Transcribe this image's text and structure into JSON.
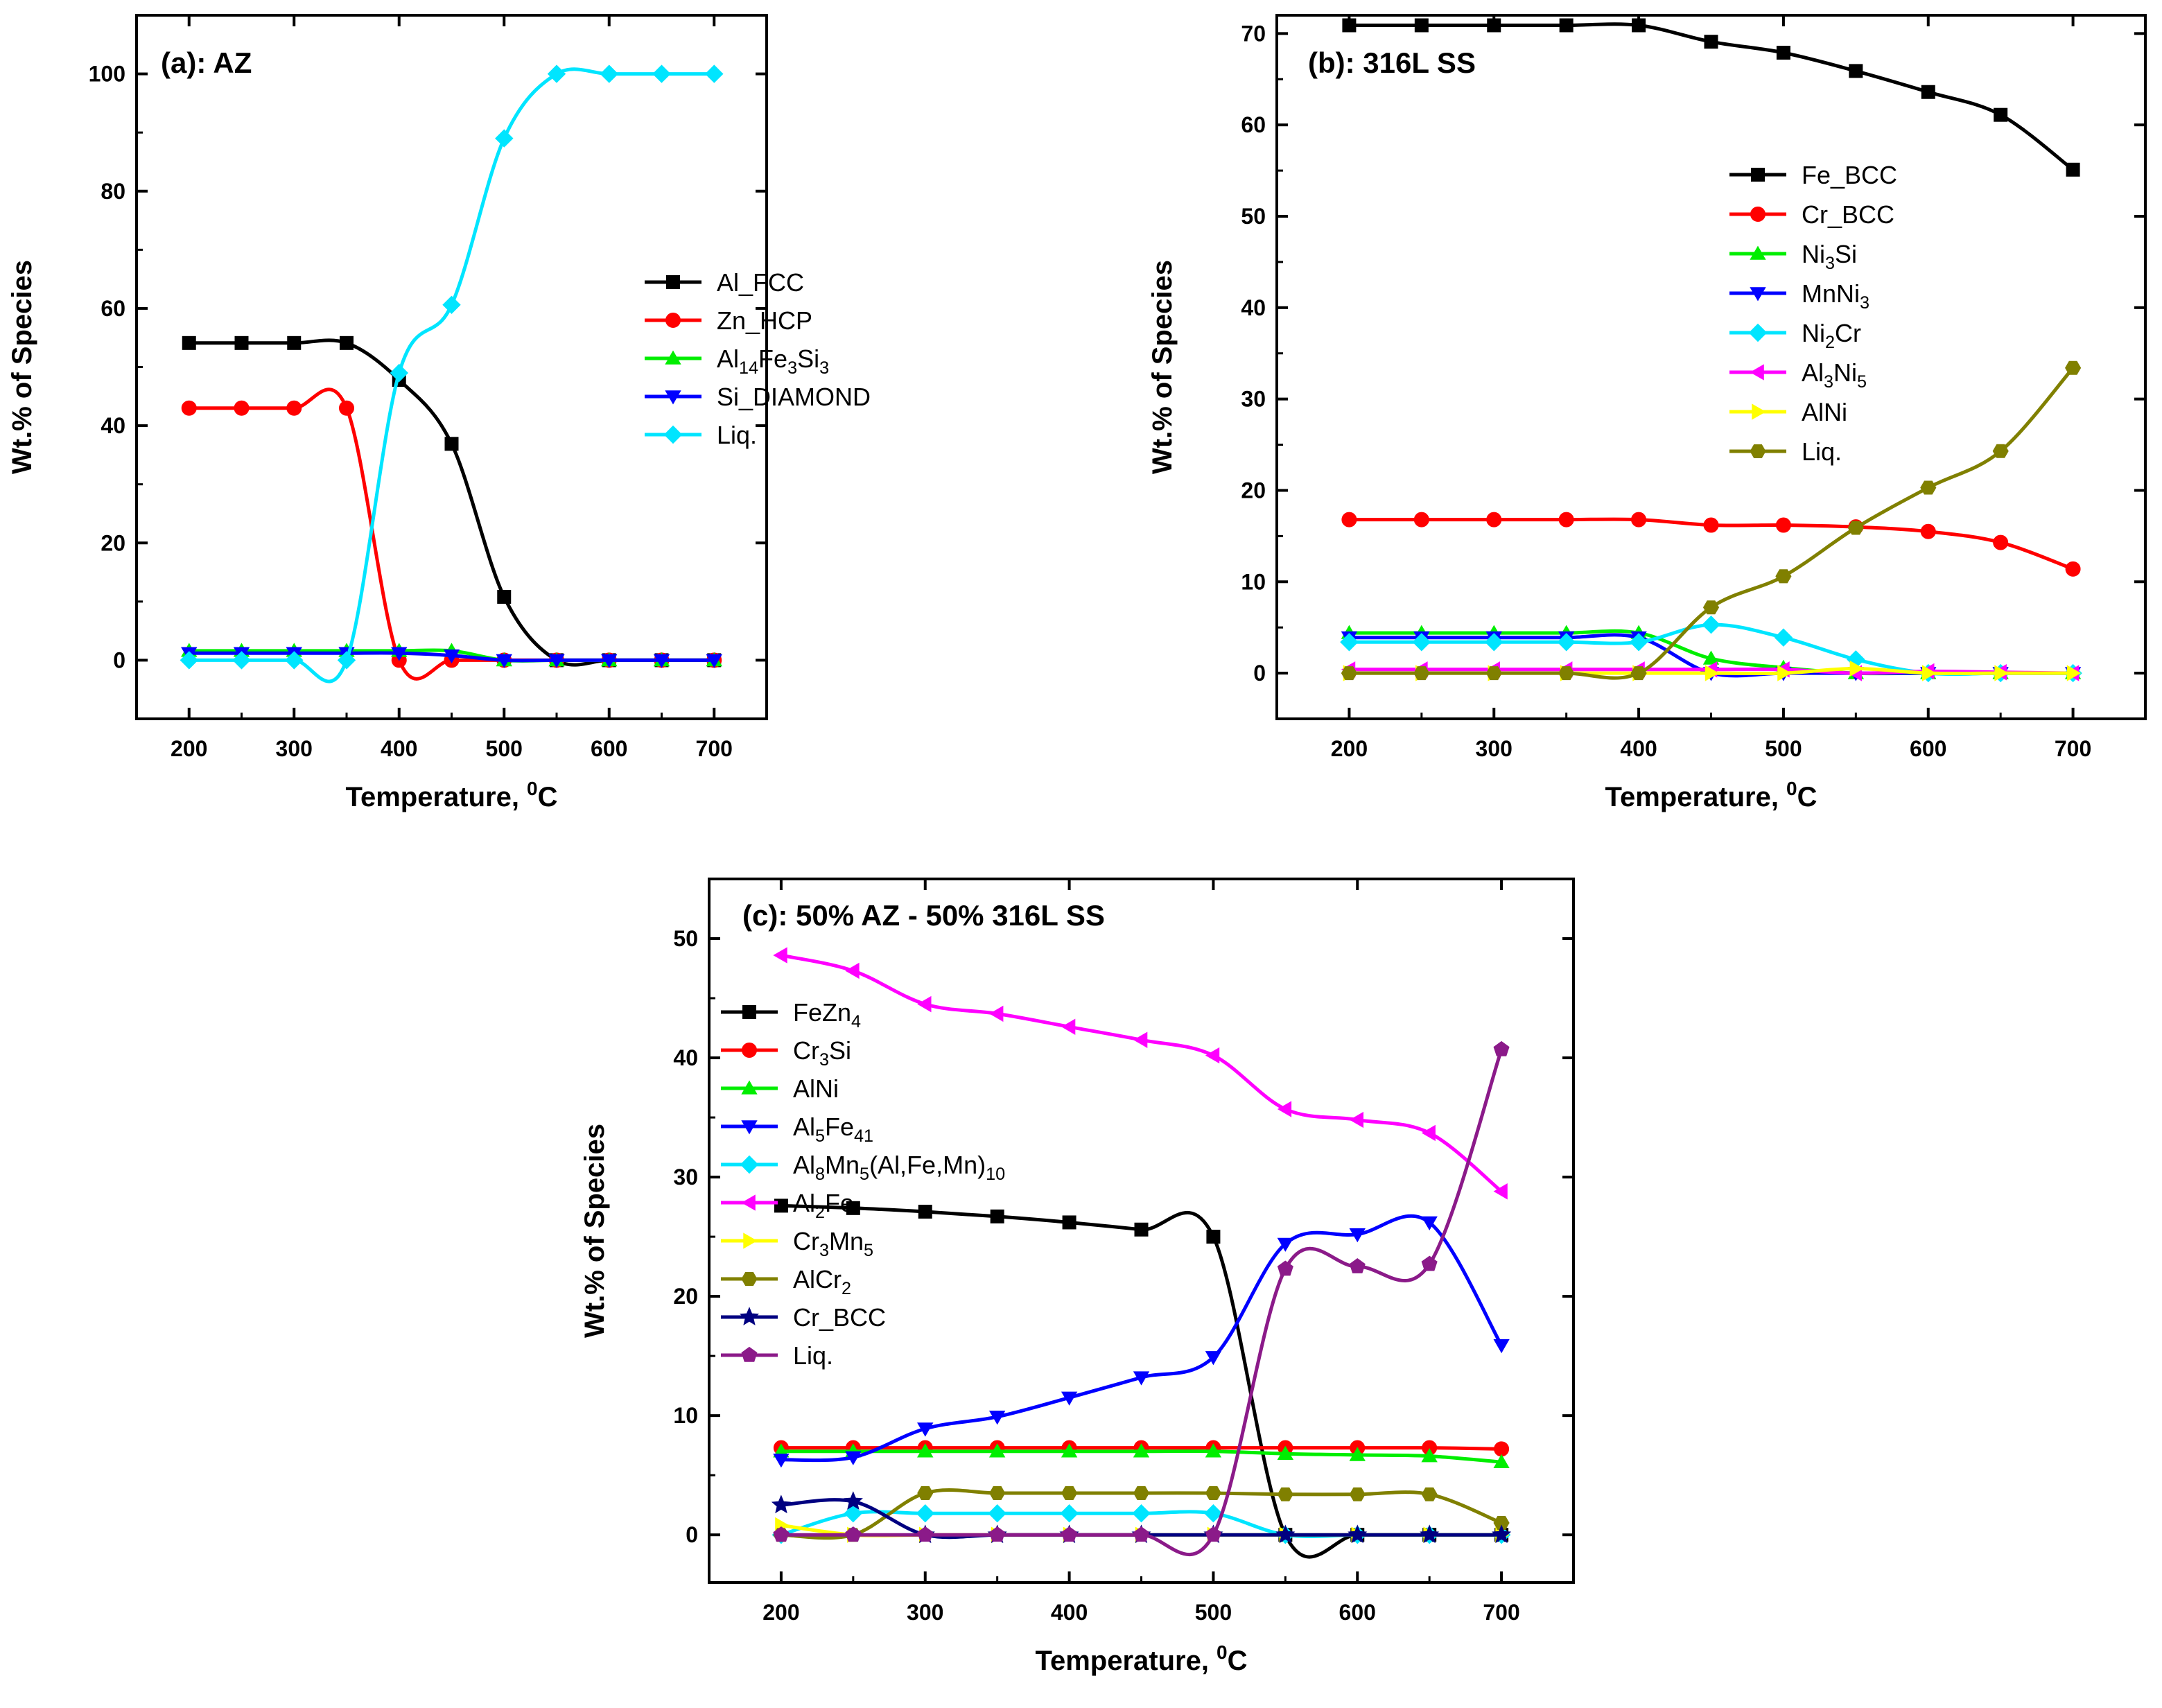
{
  "figure": {
    "name": "thermodynamic-phase-fraction-figure"
  },
  "chart_data": [
    {
      "id": "a",
      "type": "line",
      "title": "(a): AZ",
      "xlabel": {
        "main": "Temperature, ",
        "sup": "0",
        "tail": "C"
      },
      "ylabel": "Wt.% of Species",
      "xlim": [
        150,
        750
      ],
      "ylim": [
        -10,
        110
      ],
      "xticks": [
        200,
        300,
        400,
        500,
        600,
        700
      ],
      "yticks": [
        0,
        20,
        40,
        60,
        80,
        100
      ],
      "legend_position": "center-right",
      "x": [
        200,
        250,
        300,
        350,
        400,
        450,
        500,
        550,
        600,
        650,
        700
      ],
      "series": [
        {
          "name": "Al_FCC",
          "label": [
            [
              "Al_FCC",
              ""
            ]
          ],
          "color": "#000000",
          "marker": "square",
          "values": [
            54.1,
            54.1,
            54.1,
            54.1,
            47.8,
            36.9,
            10.8,
            0.0,
            0.0,
            0.0,
            0.0
          ]
        },
        {
          "name": "Zn_HCP",
          "label": [
            [
              "Zn_HCP",
              ""
            ]
          ],
          "color": "#ff0000",
          "marker": "circle",
          "values": [
            43.0,
            43.0,
            43.0,
            43.0,
            0.0,
            0.0,
            0.0,
            0.0,
            0.0,
            0.0,
            0.0
          ]
        },
        {
          "name": "Al14Fe3Si3",
          "label": [
            [
              "Al",
              ""
            ],
            [
              "14",
              "sub"
            ],
            [
              "Fe",
              ""
            ],
            [
              "3",
              "sub"
            ],
            [
              "Si",
              ""
            ],
            [
              "3",
              "sub"
            ]
          ],
          "color": "#00ee00",
          "marker": "triangle-up",
          "values": [
            1.6,
            1.6,
            1.6,
            1.6,
            1.6,
            1.6,
            0.0,
            0.0,
            0.0,
            0.0,
            0.0
          ]
        },
        {
          "name": "Si_DIAMOND",
          "label": [
            [
              "Si_DIAMOND",
              ""
            ]
          ],
          "color": "#0000ff",
          "marker": "triangle-down",
          "values": [
            1.2,
            1.2,
            1.2,
            1.2,
            1.2,
            0.8,
            0.0,
            0.0,
            0.0,
            0.0,
            0.0
          ]
        },
        {
          "name": "Liq.",
          "label": [
            [
              "Liq.",
              ""
            ]
          ],
          "color": "#00e5ff",
          "marker": "diamond",
          "values": [
            0.0,
            0.0,
            0.0,
            0.0,
            49.0,
            60.6,
            89.0,
            100.0,
            100.0,
            100.0,
            100.0
          ]
        }
      ]
    },
    {
      "id": "b",
      "type": "line",
      "title": "(b): 316L SS",
      "xlabel": {
        "main": "Temperature, ",
        "sup": "0",
        "tail": "C"
      },
      "ylabel": "Wt.% of Species",
      "xlim": [
        150,
        750
      ],
      "ylim": [
        -5,
        72
      ],
      "xticks": [
        200,
        300,
        400,
        500,
        600,
        700
      ],
      "yticks": [
        0,
        10,
        20,
        30,
        40,
        50,
        60,
        70
      ],
      "legend_position": "right",
      "x": [
        200,
        250,
        300,
        350,
        400,
        450,
        500,
        550,
        600,
        650,
        700
      ],
      "series": [
        {
          "name": "Fe_BCC",
          "label": [
            [
              "Fe_BCC",
              ""
            ]
          ],
          "color": "#000000",
          "marker": "square",
          "values": [
            70.9,
            70.9,
            70.9,
            70.9,
            70.9,
            69.1,
            67.9,
            65.9,
            63.6,
            61.1,
            55.1
          ]
        },
        {
          "name": "Cr_BCC",
          "label": [
            [
              "Cr_BCC",
              ""
            ]
          ],
          "color": "#ff0000",
          "marker": "circle",
          "values": [
            16.8,
            16.8,
            16.8,
            16.8,
            16.8,
            16.2,
            16.2,
            16.0,
            15.5,
            14.3,
            11.4
          ]
        },
        {
          "name": "Ni3Si",
          "label": [
            [
              "Ni",
              ""
            ],
            [
              "3",
              "sub"
            ],
            [
              "Si",
              ""
            ]
          ],
          "color": "#00ee00",
          "marker": "triangle-up",
          "values": [
            4.4,
            4.4,
            4.4,
            4.4,
            4.4,
            1.6,
            0.6,
            0.0,
            0.0,
            0.0,
            0.0
          ]
        },
        {
          "name": "MnNi3",
          "label": [
            [
              "MnNi",
              ""
            ],
            [
              "3",
              "sub"
            ]
          ],
          "color": "#0000ff",
          "marker": "triangle-down",
          "values": [
            3.9,
            3.9,
            3.9,
            3.9,
            3.9,
            0.0,
            0.0,
            0.0,
            0.0,
            0.0,
            0.0
          ]
        },
        {
          "name": "Ni2Cr",
          "label": [
            [
              "Ni",
              ""
            ],
            [
              "2",
              "sub"
            ],
            [
              "Cr",
              ""
            ]
          ],
          "color": "#00e5ff",
          "marker": "diamond",
          "values": [
            3.4,
            3.4,
            3.4,
            3.4,
            3.4,
            5.3,
            3.9,
            1.5,
            0.0,
            0.0,
            0.0
          ]
        },
        {
          "name": "Al3Ni5",
          "label": [
            [
              "Al",
              ""
            ],
            [
              "3",
              "sub"
            ],
            [
              "Ni",
              ""
            ],
            [
              "5",
              "sub"
            ]
          ],
          "color": "#ff00ff",
          "marker": "triangle-left",
          "values": [
            0.4,
            0.4,
            0.4,
            0.4,
            0.4,
            0.4,
            0.4,
            0.0,
            0.2,
            0.1,
            0.0
          ]
        },
        {
          "name": "AlNi",
          "label": [
            [
              "AlNi",
              ""
            ]
          ],
          "color": "#ffff00",
          "marker": "triangle-right",
          "values": [
            0.0,
            0.0,
            0.0,
            0.0,
            0.0,
            0.0,
            0.0,
            0.5,
            0.0,
            0.0,
            0.0
          ]
        },
        {
          "name": "Liq.",
          "label": [
            [
              "Liq.",
              ""
            ]
          ],
          "color": "#808000",
          "marker": "hexagon",
          "values": [
            0.0,
            0.0,
            0.0,
            0.0,
            0.0,
            7.2,
            10.6,
            15.9,
            20.3,
            24.3,
            33.4
          ]
        }
      ]
    },
    {
      "id": "c",
      "type": "line",
      "title": "(c): 50% AZ - 50% 316L SS",
      "xlabel": {
        "main": "Temperature, ",
        "sup": "0",
        "tail": "C"
      },
      "ylabel": "Wt.% of Species",
      "xlim": [
        150,
        750
      ],
      "ylim": [
        -4,
        55
      ],
      "xticks": [
        200,
        300,
        400,
        500,
        600,
        700
      ],
      "yticks": [
        0,
        10,
        20,
        30,
        40,
        50
      ],
      "legend_position": "top-left",
      "x": [
        200,
        250,
        300,
        350,
        400,
        450,
        500,
        550,
        600,
        650,
        700
      ],
      "series": [
        {
          "name": "FeZn4",
          "label": [
            [
              "FeZn",
              ""
            ],
            [
              "4",
              "sub"
            ]
          ],
          "color": "#000000",
          "marker": "square",
          "values": [
            27.6,
            27.4,
            27.1,
            26.7,
            26.2,
            25.6,
            25.0,
            0.0,
            0.0,
            0.0,
            0.0
          ]
        },
        {
          "name": "Cr3Si",
          "label": [
            [
              "Cr",
              ""
            ],
            [
              "3",
              "sub"
            ],
            [
              "Si",
              ""
            ]
          ],
          "color": "#ff0000",
          "marker": "circle",
          "values": [
            7.3,
            7.3,
            7.3,
            7.3,
            7.3,
            7.3,
            7.3,
            7.3,
            7.3,
            7.3,
            7.2
          ]
        },
        {
          "name": "AlNi",
          "label": [
            [
              "AlNi",
              ""
            ]
          ],
          "color": "#00ee00",
          "marker": "triangle-up",
          "values": [
            7.0,
            7.0,
            7.0,
            7.0,
            7.0,
            7.0,
            7.0,
            6.8,
            6.7,
            6.6,
            6.1
          ]
        },
        {
          "name": "Al5Fe41",
          "label": [
            [
              "Al",
              ""
            ],
            [
              "5",
              "sub"
            ],
            [
              "Fe",
              ""
            ],
            [
              "41",
              "sub"
            ]
          ],
          "color": "#0000ff",
          "marker": "triangle-down",
          "values": [
            6.3,
            6.5,
            8.9,
            9.9,
            11.5,
            13.2,
            14.9,
            24.4,
            25.2,
            26.2,
            15.9
          ]
        },
        {
          "name": "Al8Mn5(Al,Fe,Mn)10",
          "label": [
            [
              "Al",
              ""
            ],
            [
              "8",
              "sub"
            ],
            [
              "Mn",
              ""
            ],
            [
              "5",
              "sub"
            ],
            [
              "(Al,Fe,Mn)",
              ""
            ],
            [
              "10",
              "sub"
            ]
          ],
          "color": "#00e5ff",
          "marker": "diamond",
          "values": [
            0.0,
            1.8,
            1.8,
            1.8,
            1.8,
            1.8,
            1.8,
            0.0,
            0.0,
            0.0,
            0.0
          ]
        },
        {
          "name": "Al2Fe",
          "label": [
            [
              "Al",
              ""
            ],
            [
              "2",
              "sub"
            ],
            [
              "Fe",
              ""
            ]
          ],
          "color": "#ff00ff",
          "marker": "triangle-left",
          "values": [
            48.6,
            47.3,
            44.5,
            43.7,
            42.6,
            41.5,
            40.2,
            35.7,
            34.8,
            33.7,
            28.8
          ]
        },
        {
          "name": "Cr3Mn5",
          "label": [
            [
              "Cr",
              ""
            ],
            [
              "3",
              "sub"
            ],
            [
              "Mn",
              ""
            ],
            [
              "5",
              "sub"
            ]
          ],
          "color": "#ffff00",
          "marker": "triangle-right",
          "values": [
            0.8,
            0.0,
            0.0,
            0.0,
            0.0,
            0.0,
            0.0,
            0.0,
            0.0,
            0.0,
            0.0
          ]
        },
        {
          "name": "AlCr2",
          "label": [
            [
              "AlCr",
              ""
            ],
            [
              "2",
              "sub"
            ]
          ],
          "color": "#808000",
          "marker": "hexagon",
          "values": [
            0.0,
            0.0,
            3.5,
            3.5,
            3.5,
            3.5,
            3.5,
            3.4,
            3.4,
            3.4,
            1.0
          ]
        },
        {
          "name": "Cr_BCC",
          "label": [
            [
              "Cr_BCC",
              ""
            ]
          ],
          "color": "#000080",
          "marker": "star",
          "values": [
            2.5,
            2.8,
            0.0,
            0.0,
            0.0,
            0.0,
            0.0,
            0.0,
            0.0,
            0.0,
            0.0
          ]
        },
        {
          "name": "Liq.",
          "label": [
            [
              "Liq.",
              ""
            ]
          ],
          "color": "#8b1a89",
          "marker": "pentagon",
          "values": [
            0.0,
            0.0,
            0.0,
            0.0,
            0.0,
            0.0,
            0.0,
            22.3,
            22.5,
            22.7,
            40.7
          ]
        }
      ]
    }
  ]
}
